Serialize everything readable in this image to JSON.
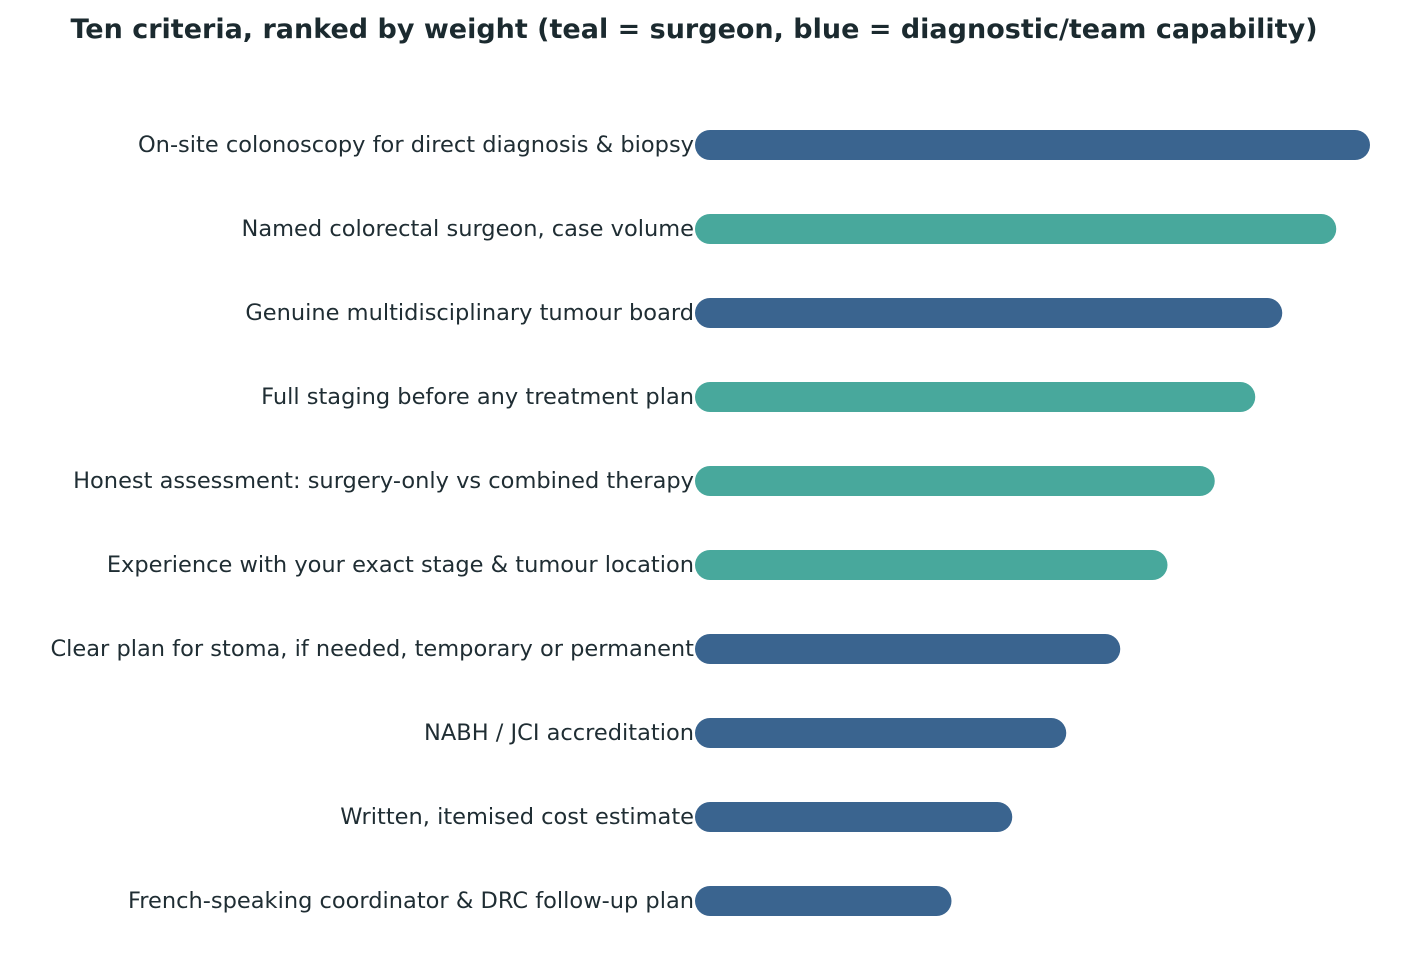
{
  "chart_data": {
    "type": "bar",
    "orientation": "horizontal",
    "title": "Ten criteria, ranked by weight (teal = surgeon, blue = diagnostic/team capability)",
    "xlabel": "",
    "ylabel": "",
    "xlim": [
      0,
      10
    ],
    "grid": false,
    "legend": "none",
    "categories": [
      "On-site colonoscopy for direct diagnosis & biopsy",
      "Named colorectal surgeon, case volume",
      "Genuine multidisciplinary tumour board",
      "Full staging before any treatment plan",
      "Honest assessment: surgery-only vs combined therapy",
      "Experience with your exact stage & tumour location",
      "Clear plan for stoma, if needed, temporary or permanent",
      "NABH / JCI accreditation",
      "Written, itemised cost estimate",
      "French-speaking coordinator & DRC follow-up plan"
    ],
    "values": [
      10.0,
      9.5,
      8.7,
      8.3,
      7.7,
      7.0,
      6.3,
      5.5,
      4.7,
      3.8
    ],
    "groups": [
      "team",
      "surgeon",
      "team",
      "surgeon",
      "surgeon",
      "surgeon",
      "team",
      "team",
      "team",
      "team"
    ],
    "colors": {
      "surgeon": "#48a89c",
      "team": "#3a648f"
    }
  }
}
